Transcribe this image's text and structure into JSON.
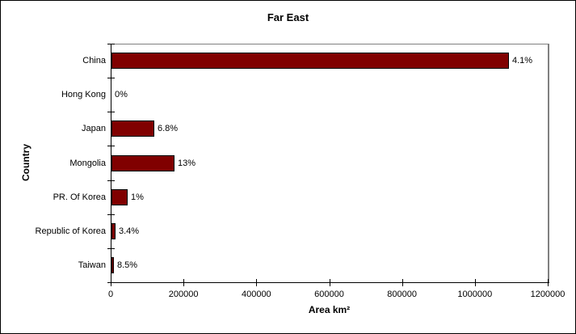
{
  "chart_data": {
    "type": "bar",
    "orientation": "horizontal",
    "title": "Far East",
    "xlabel": "Area km²",
    "ylabel": "Country",
    "categories": [
      "China",
      "Hong Kong",
      "Japan",
      "Mongolia",
      "PR. Of Korea",
      "Republic of Korea",
      "Taiwan"
    ],
    "values": [
      1092000,
      0,
      118000,
      173000,
      44000,
      12000,
      7000
    ],
    "data_labels": [
      "4.1%",
      "0%",
      "6.8%",
      "13%",
      "1%",
      "3.4%",
      "8.5%"
    ],
    "xlim": [
      0,
      1200000
    ],
    "xticks": [
      0,
      200000,
      400000,
      600000,
      800000,
      1000000,
      1200000
    ],
    "xtick_labels": [
      "0",
      "200000",
      "400000",
      "600000",
      "800000",
      "1000000",
      "1200000"
    ],
    "grid": false,
    "legend": false,
    "bar_color": "#800000",
    "bar_border_color": "#000000",
    "axis_color": "#000000",
    "plot_border_color": "#808080",
    "background": "#ffffff"
  }
}
